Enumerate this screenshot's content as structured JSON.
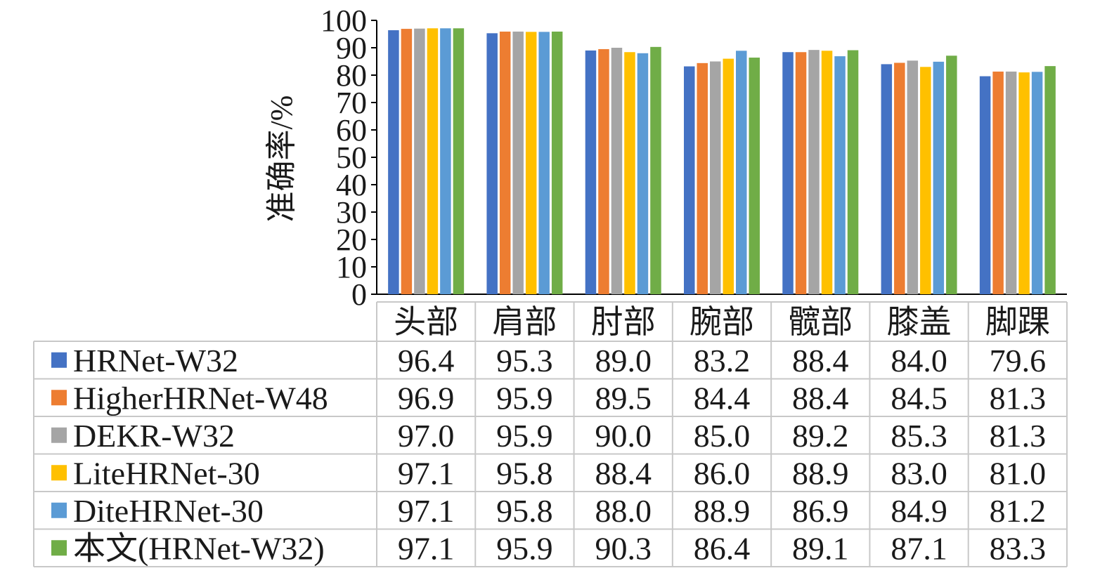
{
  "chart_data": {
    "type": "bar",
    "ylabel": "准确率/%",
    "ylim": [
      0,
      100
    ],
    "yticks": [
      0,
      10,
      20,
      30,
      40,
      50,
      60,
      70,
      80,
      90,
      100
    ],
    "grid": false,
    "legend": "data-table-left",
    "categories": [
      "头部",
      "肩部",
      "肘部",
      "腕部",
      "髋部",
      "膝盖",
      "脚踝"
    ],
    "series": [
      {
        "name": "HRNet-W32",
        "color": "#4472c4",
        "values": [
          "96.4",
          "95.3",
          "89.0",
          "83.2",
          "88.4",
          "84.0",
          "79.6"
        ]
      },
      {
        "name": "HigherHRNet-W48",
        "color": "#ed7d31",
        "values": [
          "96.9",
          "95.9",
          "89.5",
          "84.4",
          "88.4",
          "84.5",
          "81.3"
        ]
      },
      {
        "name": "DEKR-W32",
        "color": "#a5a5a5",
        "values": [
          "97.0",
          "95.9",
          "90.0",
          "85.0",
          "89.2",
          "85.3",
          "81.3"
        ]
      },
      {
        "name": "LiteHRNet-30",
        "color": "#ffc000",
        "values": [
          "97.1",
          "95.8",
          "88.4",
          "86.0",
          "88.9",
          "83.0",
          "81.0"
        ]
      },
      {
        "name": "DiteHRNet-30",
        "color": "#5b9bd5",
        "values": [
          "97.1",
          "95.8",
          "88.0",
          "88.9",
          "86.9",
          "84.9",
          "81.2"
        ]
      },
      {
        "name": "本文(HRNet-W32)",
        "color": "#70ad47",
        "values": [
          "97.1",
          "95.9",
          "90.3",
          "86.4",
          "89.1",
          "87.1",
          "83.3"
        ]
      }
    ]
  }
}
